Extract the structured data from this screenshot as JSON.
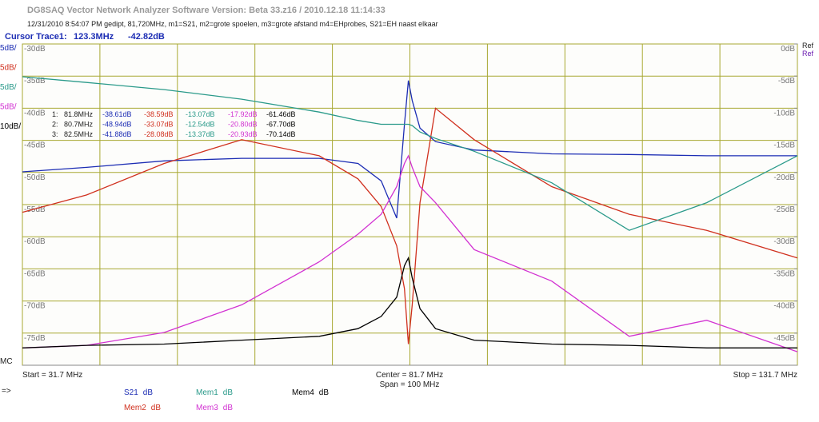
{
  "window_title": "DG8SAQ Vector Network Analyzer Software   Version:  Beta 33.z16 / 2010.12.18 11:14:33",
  "info_line": "12/31/2010   8:54:07 PM    gedipt, 81,720MHz, m1=S21, m2=grote spoelen, m3=grote afstand m4=EHprobes, S21=EH naast elkaar",
  "cursor": {
    "label": "Cursor Trace1:",
    "freq": "123.3MHz",
    "value": "-42.82dB"
  },
  "scale_labels": [
    "5dB/",
    "5dB/",
    "5dB/",
    "5dB/",
    "10dB/"
  ],
  "mc_label": "MC",
  "arrow_label": "=>",
  "ref_label": "Ref",
  "markers": {
    "rows": [
      [
        "1:",
        "81.8MHz",
        "-38.61dB",
        "-38.59dB",
        "-13.07dB",
        "-17.92dB",
        "-61.46dB"
      ],
      [
        "2:",
        "80.7MHz",
        "-48.94dB",
        "-33.07dB",
        "-12.54dB",
        "-20.80dB",
        "-67.70dB"
      ],
      [
        "3:",
        "82.5MHz",
        "-41.88dB",
        "-28.08dB",
        "-13.37dB",
        "-20.93dB",
        "-70.14dB"
      ]
    ]
  },
  "footer": {
    "start": "Start = 31.7 MHz",
    "center": "Center = 81.7 MHz",
    "span": "Span = 100 MHz",
    "stop": "Stop = 131.7 MHz"
  },
  "chart_data": {
    "type": "line",
    "legend_unit": "dB",
    "x": [
      31.7,
      40,
      50,
      60,
      70,
      75,
      78,
      80,
      81,
      81.5,
      82,
      83,
      85,
      90,
      100,
      110,
      120,
      131.7
    ],
    "xlim": [
      31.7,
      131.7
    ],
    "xticks": [
      31.7,
      41.7,
      51.7,
      61.7,
      71.7,
      81.7,
      91.7,
      101.7,
      111.7,
      121.7,
      131.7
    ],
    "ylim": [
      -80,
      -30
    ],
    "yticks": [
      {
        "value": -30,
        "label": "-30dB"
      },
      {
        "value": -35,
        "label": "-35dB"
      },
      {
        "value": -40,
        "label": "-40dB"
      },
      {
        "value": -45,
        "label": "-45dB"
      },
      {
        "value": -50,
        "label": "-50dB"
      },
      {
        "value": -55,
        "label": "-55dB"
      },
      {
        "value": -60,
        "label": "-60dB"
      },
      {
        "value": -65,
        "label": "-65dB"
      },
      {
        "value": -70,
        "label": "-70dB"
      },
      {
        "value": -75,
        "label": "-75dB"
      }
    ],
    "y2lim": [
      -50,
      0
    ],
    "y2ticks": [
      {
        "value": 0,
        "label": "0dB"
      },
      {
        "value": -5,
        "label": "-5dB"
      },
      {
        "value": -10,
        "label": "-10dB"
      },
      {
        "value": -15,
        "label": "-15dB"
      },
      {
        "value": -20,
        "label": "-20dB"
      },
      {
        "value": -25,
        "label": "-25dB"
      },
      {
        "value": -30,
        "label": "-30dB"
      },
      {
        "value": -35,
        "label": "-35dB"
      },
      {
        "value": -40,
        "label": "-40dB"
      },
      {
        "value": -45,
        "label": "-45dB"
      }
    ],
    "grid": true,
    "series": [
      {
        "name": "S21",
        "color": "#1c2db4",
        "values": [
          -49.9,
          -49.2,
          -48.2,
          -47.8,
          -47.8,
          -48.6,
          -51.3,
          -57.1,
          -42.5,
          -35.7,
          -38.8,
          -43.1,
          -45.2,
          -46.5,
          -47.1,
          -47.2,
          -47.4,
          -47.4
        ]
      },
      {
        "name": "Mem2",
        "color": "#d0301e",
        "values": [
          -56.2,
          -53.5,
          -48.6,
          -44.9,
          -47.4,
          -51.0,
          -55.3,
          -61.4,
          -68.1,
          -76.7,
          -70.6,
          -54.7,
          -40.0,
          -44.9,
          -52.2,
          -56.5,
          -59.0,
          -63.3
        ]
      },
      {
        "name": "Mem1",
        "color": "#2a9a8a",
        "values": [
          -35.1,
          -36.0,
          -37.1,
          -38.6,
          -40.6,
          -41.9,
          -42.5,
          -42.5,
          -42.5,
          -42.5,
          -42.7,
          -43.7,
          -44.7,
          -46.7,
          -51.6,
          -59.0,
          -54.7,
          -47.4
        ]
      },
      {
        "name": "Mem3",
        "color": "#d232d2",
        "values": [
          -77.3,
          -76.9,
          -74.9,
          -70.6,
          -63.9,
          -59.6,
          -56.5,
          -52.2,
          -48.6,
          -47.4,
          -49.2,
          -52.2,
          -54.7,
          -62.0,
          -66.9,
          -75.5,
          -73.0,
          -77.9
        ]
      },
      {
        "name": "Mem4",
        "color": "#000000",
        "values": [
          -77.3,
          -76.9,
          -76.7,
          -76.1,
          -75.5,
          -74.3,
          -72.4,
          -69.4,
          -64.5,
          -63.3,
          -66.4,
          -71.2,
          -74.3,
          -76.1,
          -76.7,
          -76.9,
          -77.3,
          -77.3
        ]
      }
    ]
  }
}
